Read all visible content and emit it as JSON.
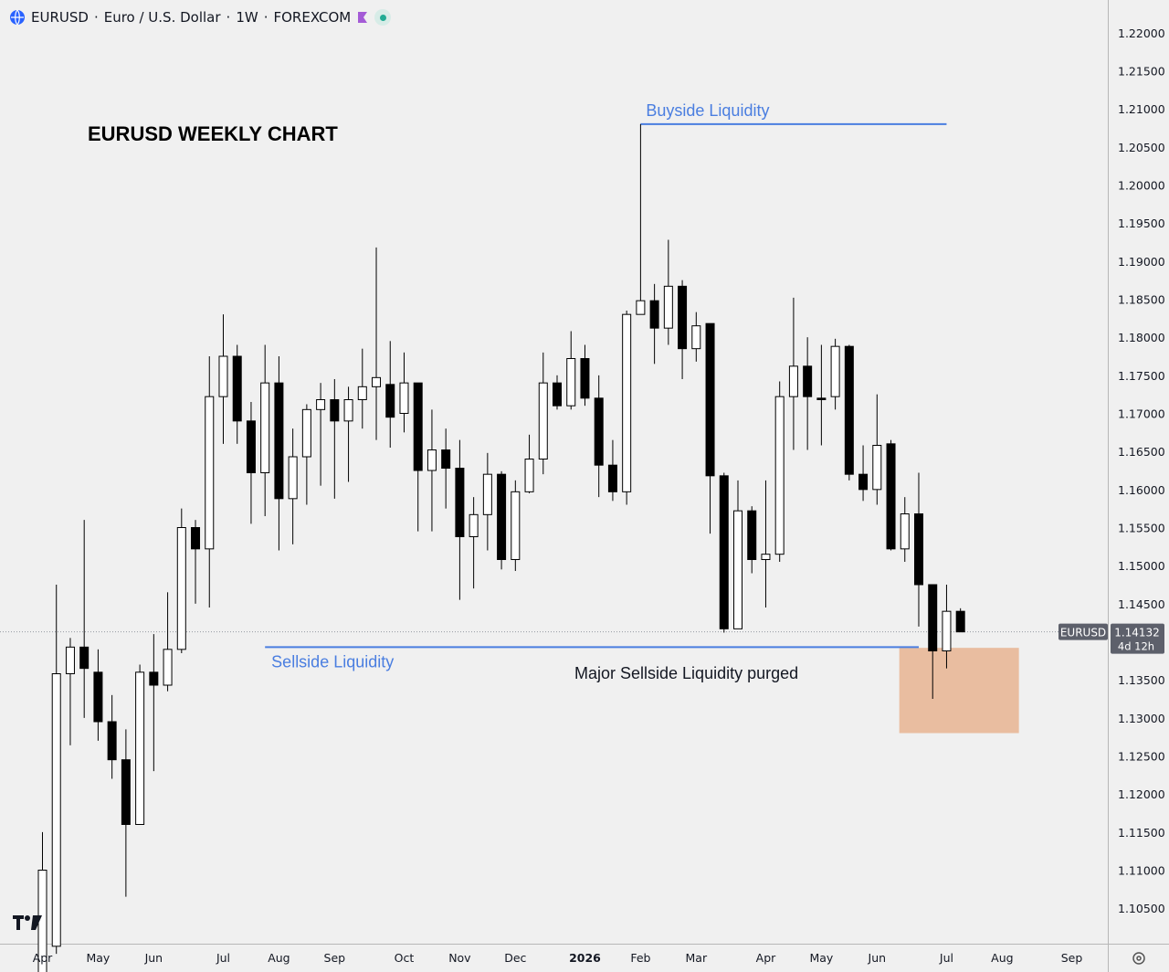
{
  "header": {
    "symbol": "EURUSD",
    "description": "Euro / U.S. Dollar",
    "interval": "1W",
    "exchange": "FOREXCOM",
    "icons": [
      "globe-icon",
      "flag-icon",
      "market-open-dot-icon"
    ]
  },
  "colors": {
    "background": "#f0f0f0",
    "up_body": "#ffffff",
    "down_body": "#000000",
    "candle_outline": "#000000",
    "line": "#4a7ee0",
    "zone": "#e9bda0",
    "price_label": "#5d606b"
  },
  "chart_data": {
    "type": "candlestick",
    "title": "EURUSD WEEKLY CHART",
    "y_axis": {
      "ticks": [
        "1.22000",
        "1.21500",
        "1.21000",
        "1.20500",
        "1.20000",
        "1.19500",
        "1.19000",
        "1.18500",
        "1.18000",
        "1.17500",
        "1.17000",
        "1.16500",
        "1.16000",
        "1.15500",
        "1.15000",
        "1.14500",
        "1.14000",
        "1.13500",
        "1.13000",
        "1.12500",
        "1.12000",
        "1.11500",
        "1.11000",
        "1.10500"
      ],
      "range": [
        1.1019,
        1.2219
      ]
    },
    "x_axis": {
      "ticks": [
        {
          "label": "Apr",
          "index": 0
        },
        {
          "label": "May",
          "index": 4
        },
        {
          "label": "Jun",
          "index": 8
        },
        {
          "label": "Jul",
          "index": 13
        },
        {
          "label": "Aug",
          "index": 17
        },
        {
          "label": "Sep",
          "index": 21
        },
        {
          "label": "Oct",
          "index": 26
        },
        {
          "label": "Nov",
          "index": 30
        },
        {
          "label": "Dec",
          "index": 34
        },
        {
          "label": "2026",
          "index": 39,
          "bold": true
        },
        {
          "label": "Feb",
          "index": 43
        },
        {
          "label": "Mar",
          "index": 47
        },
        {
          "label": "Apr",
          "index": 52
        },
        {
          "label": "May",
          "index": 56
        },
        {
          "label": "Jun",
          "index": 60
        },
        {
          "label": "Jul",
          "index": 65
        },
        {
          "label": "Aug",
          "index": 69
        },
        {
          "label": "Sep",
          "index": 74
        }
      ]
    },
    "candles": [
      {
        "o": 1.095,
        "h": 1.115,
        "l": 1.095,
        "c": 1.11
      },
      {
        "o": 1.1,
        "h": 1.1475,
        "l": 1.099,
        "c": 1.1358
      },
      {
        "o": 1.1358,
        "h": 1.1405,
        "l": 1.1264,
        "c": 1.1393
      },
      {
        "o": 1.1393,
        "h": 1.156,
        "l": 1.13,
        "c": 1.1365
      },
      {
        "o": 1.136,
        "h": 1.139,
        "l": 1.127,
        "c": 1.1295
      },
      {
        "o": 1.1295,
        "h": 1.133,
        "l": 1.122,
        "c": 1.1245
      },
      {
        "o": 1.1245,
        "h": 1.1285,
        "l": 1.1065,
        "c": 1.116
      },
      {
        "o": 1.116,
        "h": 1.137,
        "l": 1.116,
        "c": 1.136
      },
      {
        "o": 1.136,
        "h": 1.141,
        "l": 1.123,
        "c": 1.1343
      },
      {
        "o": 1.1343,
        "h": 1.1465,
        "l": 1.1335,
        "c": 1.139
      },
      {
        "o": 1.139,
        "h": 1.1575,
        "l": 1.1385,
        "c": 1.155
      },
      {
        "o": 1.155,
        "h": 1.156,
        "l": 1.145,
        "c": 1.1522
      },
      {
        "o": 1.1522,
        "h": 1.1775,
        "l": 1.1445,
        "c": 1.1722
      },
      {
        "o": 1.1722,
        "h": 1.183,
        "l": 1.166,
        "c": 1.1775
      },
      {
        "o": 1.1775,
        "h": 1.179,
        "l": 1.166,
        "c": 1.169
      },
      {
        "o": 1.169,
        "h": 1.1715,
        "l": 1.1555,
        "c": 1.1622
      },
      {
        "o": 1.1622,
        "h": 1.179,
        "l": 1.1565,
        "c": 1.174
      },
      {
        "o": 1.174,
        "h": 1.1775,
        "l": 1.152,
        "c": 1.1588
      },
      {
        "o": 1.1588,
        "h": 1.168,
        "l": 1.1528,
        "c": 1.1643
      },
      {
        "o": 1.1643,
        "h": 1.1712,
        "l": 1.158,
        "c": 1.1705
      },
      {
        "o": 1.1705,
        "h": 1.174,
        "l": 1.1605,
        "c": 1.1718
      },
      {
        "o": 1.1718,
        "h": 1.1745,
        "l": 1.1588,
        "c": 1.169
      },
      {
        "o": 1.169,
        "h": 1.1735,
        "l": 1.161,
        "c": 1.1718
      },
      {
        "o": 1.1718,
        "h": 1.1785,
        "l": 1.168,
        "c": 1.1735
      },
      {
        "o": 1.1735,
        "h": 1.1918,
        "l": 1.1665,
        "c": 1.1747
      },
      {
        "o": 1.1738,
        "h": 1.1795,
        "l": 1.1655,
        "c": 1.1695
      },
      {
        "o": 1.17,
        "h": 1.178,
        "l": 1.1675,
        "c": 1.174
      },
      {
        "o": 1.174,
        "h": 1.174,
        "l": 1.1545,
        "c": 1.1625
      },
      {
        "o": 1.1625,
        "h": 1.1705,
        "l": 1.1545,
        "c": 1.1652
      },
      {
        "o": 1.1652,
        "h": 1.168,
        "l": 1.1575,
        "c": 1.1628
      },
      {
        "o": 1.1628,
        "h": 1.1665,
        "l": 1.1455,
        "c": 1.1538
      },
      {
        "o": 1.1538,
        "h": 1.159,
        "l": 1.147,
        "c": 1.1567
      },
      {
        "o": 1.1567,
        "h": 1.1648,
        "l": 1.152,
        "c": 1.162
      },
      {
        "o": 1.162,
        "h": 1.1624,
        "l": 1.1495,
        "c": 1.1508
      },
      {
        "o": 1.1508,
        "h": 1.1612,
        "l": 1.1493,
        "c": 1.1597
      },
      {
        "o": 1.1597,
        "h": 1.1672,
        "l": 1.1595,
        "c": 1.164
      },
      {
        "o": 1.164,
        "h": 1.178,
        "l": 1.162,
        "c": 1.174
      },
      {
        "o": 1.174,
        "h": 1.175,
        "l": 1.1705,
        "c": 1.171
      },
      {
        "o": 1.171,
        "h": 1.1808,
        "l": 1.1705,
        "c": 1.1772
      },
      {
        "o": 1.1772,
        "h": 1.179,
        "l": 1.171,
        "c": 1.172
      },
      {
        "o": 1.172,
        "h": 1.175,
        "l": 1.159,
        "c": 1.1632
      },
      {
        "o": 1.1632,
        "h": 1.1665,
        "l": 1.1585,
        "c": 1.1597
      },
      {
        "o": 1.1597,
        "h": 1.1835,
        "l": 1.158,
        "c": 1.183
      },
      {
        "o": 1.183,
        "h": 1.208,
        "l": 1.183,
        "c": 1.1848
      },
      {
        "o": 1.1848,
        "h": 1.187,
        "l": 1.1765,
        "c": 1.1812
      },
      {
        "o": 1.1812,
        "h": 1.1928,
        "l": 1.179,
        "c": 1.1867
      },
      {
        "o": 1.1867,
        "h": 1.1875,
        "l": 1.1745,
        "c": 1.1785
      },
      {
        "o": 1.1785,
        "h": 1.1833,
        "l": 1.1768,
        "c": 1.1815
      },
      {
        "o": 1.1818,
        "h": 1.1818,
        "l": 1.1542,
        "c": 1.1618
      },
      {
        "o": 1.1618,
        "h": 1.1622,
        "l": 1.1412,
        "c": 1.1417
      },
      {
        "o": 1.1417,
        "h": 1.1612,
        "l": 1.1417,
        "c": 1.1572
      },
      {
        "o": 1.1572,
        "h": 1.1578,
        "l": 1.149,
        "c": 1.1508
      },
      {
        "o": 1.1508,
        "h": 1.1612,
        "l": 1.1445,
        "c": 1.1515
      },
      {
        "o": 1.1515,
        "h": 1.1742,
        "l": 1.1505,
        "c": 1.1722
      },
      {
        "o": 1.1722,
        "h": 1.1852,
        "l": 1.1652,
        "c": 1.1762
      },
      {
        "o": 1.1762,
        "h": 1.18,
        "l": 1.1652,
        "c": 1.1722
      },
      {
        "o": 1.172,
        "h": 1.179,
        "l": 1.1658,
        "c": 1.1718
      },
      {
        "o": 1.1722,
        "h": 1.1798,
        "l": 1.1705,
        "c": 1.1788
      },
      {
        "o": 1.1788,
        "h": 1.179,
        "l": 1.1612,
        "c": 1.162
      },
      {
        "o": 1.162,
        "h": 1.1658,
        "l": 1.1585,
        "c": 1.16
      },
      {
        "o": 1.16,
        "h": 1.1725,
        "l": 1.158,
        "c": 1.1658
      },
      {
        "o": 1.166,
        "h": 1.1665,
        "l": 1.152,
        "c": 1.1522
      },
      {
        "o": 1.1522,
        "h": 1.159,
        "l": 1.1505,
        "c": 1.1568
      },
      {
        "o": 1.1568,
        "h": 1.1622,
        "l": 1.142,
        "c": 1.1475
      },
      {
        "o": 1.1475,
        "h": 1.1475,
        "l": 1.1325,
        "c": 1.1388
      },
      {
        "o": 1.1388,
        "h": 1.1475,
        "l": 1.1365,
        "c": 1.144
      },
      {
        "o": 1.144,
        "h": 1.1444,
        "l": 1.1413,
        "c": 1.1413
      }
    ],
    "annotations": {
      "buyside": {
        "label": "Buyside Liquidity",
        "price": 1.208,
        "from_index": 43,
        "to_index": 65
      },
      "sellside": {
        "label": "Sellside Liquidity",
        "price": 1.1393,
        "from_index": 16,
        "to_index": 63
      },
      "purged": {
        "label": "Major Sellside Liquidity purged",
        "zone": {
          "from_index": 61.6,
          "to_index": 70.2,
          "top": 1.1392,
          "bottom": 1.128
        }
      }
    },
    "current_price": {
      "symbol": "EURUSD",
      "value": "1.14132",
      "countdown": "4d 12h",
      "price": 1.1413
    }
  }
}
